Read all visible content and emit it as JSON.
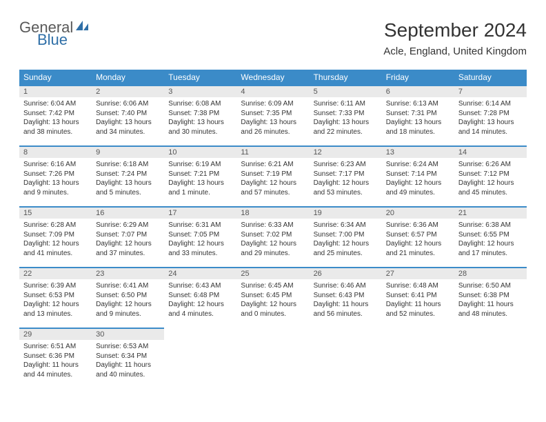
{
  "brand": {
    "part1": "General",
    "part2": "Blue"
  },
  "title": "September 2024",
  "location": "Acle, England, United Kingdom",
  "colors": {
    "header_bg": "#3b8bc8",
    "header_text": "#ffffff",
    "daynum_bg": "#eaeaea",
    "row_divider": "#3b8bc8",
    "brand_gray": "#595959",
    "brand_blue": "#2f6fa7"
  },
  "weekdays": [
    "Sunday",
    "Monday",
    "Tuesday",
    "Wednesday",
    "Thursday",
    "Friday",
    "Saturday"
  ],
  "weeks": [
    [
      {
        "n": "1",
        "sr": "Sunrise: 6:04 AM",
        "ss": "Sunset: 7:42 PM",
        "d1": "Daylight: 13 hours",
        "d2": "and 38 minutes."
      },
      {
        "n": "2",
        "sr": "Sunrise: 6:06 AM",
        "ss": "Sunset: 7:40 PM",
        "d1": "Daylight: 13 hours",
        "d2": "and 34 minutes."
      },
      {
        "n": "3",
        "sr": "Sunrise: 6:08 AM",
        "ss": "Sunset: 7:38 PM",
        "d1": "Daylight: 13 hours",
        "d2": "and 30 minutes."
      },
      {
        "n": "4",
        "sr": "Sunrise: 6:09 AM",
        "ss": "Sunset: 7:35 PM",
        "d1": "Daylight: 13 hours",
        "d2": "and 26 minutes."
      },
      {
        "n": "5",
        "sr": "Sunrise: 6:11 AM",
        "ss": "Sunset: 7:33 PM",
        "d1": "Daylight: 13 hours",
        "d2": "and 22 minutes."
      },
      {
        "n": "6",
        "sr": "Sunrise: 6:13 AM",
        "ss": "Sunset: 7:31 PM",
        "d1": "Daylight: 13 hours",
        "d2": "and 18 minutes."
      },
      {
        "n": "7",
        "sr": "Sunrise: 6:14 AM",
        "ss": "Sunset: 7:28 PM",
        "d1": "Daylight: 13 hours",
        "d2": "and 14 minutes."
      }
    ],
    [
      {
        "n": "8",
        "sr": "Sunrise: 6:16 AM",
        "ss": "Sunset: 7:26 PM",
        "d1": "Daylight: 13 hours",
        "d2": "and 9 minutes."
      },
      {
        "n": "9",
        "sr": "Sunrise: 6:18 AM",
        "ss": "Sunset: 7:24 PM",
        "d1": "Daylight: 13 hours",
        "d2": "and 5 minutes."
      },
      {
        "n": "10",
        "sr": "Sunrise: 6:19 AM",
        "ss": "Sunset: 7:21 PM",
        "d1": "Daylight: 13 hours",
        "d2": "and 1 minute."
      },
      {
        "n": "11",
        "sr": "Sunrise: 6:21 AM",
        "ss": "Sunset: 7:19 PM",
        "d1": "Daylight: 12 hours",
        "d2": "and 57 minutes."
      },
      {
        "n": "12",
        "sr": "Sunrise: 6:23 AM",
        "ss": "Sunset: 7:17 PM",
        "d1": "Daylight: 12 hours",
        "d2": "and 53 minutes."
      },
      {
        "n": "13",
        "sr": "Sunrise: 6:24 AM",
        "ss": "Sunset: 7:14 PM",
        "d1": "Daylight: 12 hours",
        "d2": "and 49 minutes."
      },
      {
        "n": "14",
        "sr": "Sunrise: 6:26 AM",
        "ss": "Sunset: 7:12 PM",
        "d1": "Daylight: 12 hours",
        "d2": "and 45 minutes."
      }
    ],
    [
      {
        "n": "15",
        "sr": "Sunrise: 6:28 AM",
        "ss": "Sunset: 7:09 PM",
        "d1": "Daylight: 12 hours",
        "d2": "and 41 minutes."
      },
      {
        "n": "16",
        "sr": "Sunrise: 6:29 AM",
        "ss": "Sunset: 7:07 PM",
        "d1": "Daylight: 12 hours",
        "d2": "and 37 minutes."
      },
      {
        "n": "17",
        "sr": "Sunrise: 6:31 AM",
        "ss": "Sunset: 7:05 PM",
        "d1": "Daylight: 12 hours",
        "d2": "and 33 minutes."
      },
      {
        "n": "18",
        "sr": "Sunrise: 6:33 AM",
        "ss": "Sunset: 7:02 PM",
        "d1": "Daylight: 12 hours",
        "d2": "and 29 minutes."
      },
      {
        "n": "19",
        "sr": "Sunrise: 6:34 AM",
        "ss": "Sunset: 7:00 PM",
        "d1": "Daylight: 12 hours",
        "d2": "and 25 minutes."
      },
      {
        "n": "20",
        "sr": "Sunrise: 6:36 AM",
        "ss": "Sunset: 6:57 PM",
        "d1": "Daylight: 12 hours",
        "d2": "and 21 minutes."
      },
      {
        "n": "21",
        "sr": "Sunrise: 6:38 AM",
        "ss": "Sunset: 6:55 PM",
        "d1": "Daylight: 12 hours",
        "d2": "and 17 minutes."
      }
    ],
    [
      {
        "n": "22",
        "sr": "Sunrise: 6:39 AM",
        "ss": "Sunset: 6:53 PM",
        "d1": "Daylight: 12 hours",
        "d2": "and 13 minutes."
      },
      {
        "n": "23",
        "sr": "Sunrise: 6:41 AM",
        "ss": "Sunset: 6:50 PM",
        "d1": "Daylight: 12 hours",
        "d2": "and 9 minutes."
      },
      {
        "n": "24",
        "sr": "Sunrise: 6:43 AM",
        "ss": "Sunset: 6:48 PM",
        "d1": "Daylight: 12 hours",
        "d2": "and 4 minutes."
      },
      {
        "n": "25",
        "sr": "Sunrise: 6:45 AM",
        "ss": "Sunset: 6:45 PM",
        "d1": "Daylight: 12 hours",
        "d2": "and 0 minutes."
      },
      {
        "n": "26",
        "sr": "Sunrise: 6:46 AM",
        "ss": "Sunset: 6:43 PM",
        "d1": "Daylight: 11 hours",
        "d2": "and 56 minutes."
      },
      {
        "n": "27",
        "sr": "Sunrise: 6:48 AM",
        "ss": "Sunset: 6:41 PM",
        "d1": "Daylight: 11 hours",
        "d2": "and 52 minutes."
      },
      {
        "n": "28",
        "sr": "Sunrise: 6:50 AM",
        "ss": "Sunset: 6:38 PM",
        "d1": "Daylight: 11 hours",
        "d2": "and 48 minutes."
      }
    ],
    [
      {
        "n": "29",
        "sr": "Sunrise: 6:51 AM",
        "ss": "Sunset: 6:36 PM",
        "d1": "Daylight: 11 hours",
        "d2": "and 44 minutes."
      },
      {
        "n": "30",
        "sr": "Sunrise: 6:53 AM",
        "ss": "Sunset: 6:34 PM",
        "d1": "Daylight: 11 hours",
        "d2": "and 40 minutes."
      },
      null,
      null,
      null,
      null,
      null
    ]
  ]
}
